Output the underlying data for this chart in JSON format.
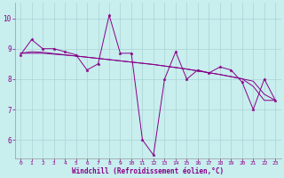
{
  "xlabel": "Windchill (Refroidissement éolien,°C)",
  "background_color": "#c8eeee",
  "grid_color": "#aad4d4",
  "line_color": "#880088",
  "xlim_min": -0.5,
  "xlim_max": 23.5,
  "ylim_min": 5.4,
  "ylim_max": 10.5,
  "yticks": [
    6,
    7,
    8,
    9,
    10
  ],
  "xticks": [
    0,
    1,
    2,
    3,
    4,
    5,
    6,
    7,
    8,
    9,
    10,
    11,
    12,
    13,
    14,
    15,
    16,
    17,
    18,
    19,
    20,
    21,
    22,
    23
  ],
  "main_series": [
    8.8,
    9.3,
    9.0,
    9.0,
    8.9,
    8.8,
    8.3,
    8.5,
    10.1,
    8.85,
    8.85,
    6.0,
    5.5,
    8.0,
    8.9,
    8.0,
    8.3,
    8.2,
    8.4,
    8.3,
    7.9,
    7.0,
    8.0,
    7.3
  ],
  "trend1": [
    8.85,
    8.85,
    8.85,
    8.82,
    8.79,
    8.76,
    8.72,
    8.68,
    8.64,
    8.6,
    8.56,
    8.52,
    8.48,
    8.43,
    8.38,
    8.33,
    8.27,
    8.21,
    8.15,
    8.08,
    8.01,
    7.93,
    7.5,
    7.3
  ],
  "trend2": [
    8.85,
    8.9,
    8.88,
    8.84,
    8.8,
    8.76,
    8.72,
    8.68,
    8.64,
    8.6,
    8.56,
    8.52,
    8.48,
    8.43,
    8.38,
    8.33,
    8.27,
    8.21,
    8.15,
    8.08,
    8.01,
    7.76,
    7.3,
    7.3
  ]
}
